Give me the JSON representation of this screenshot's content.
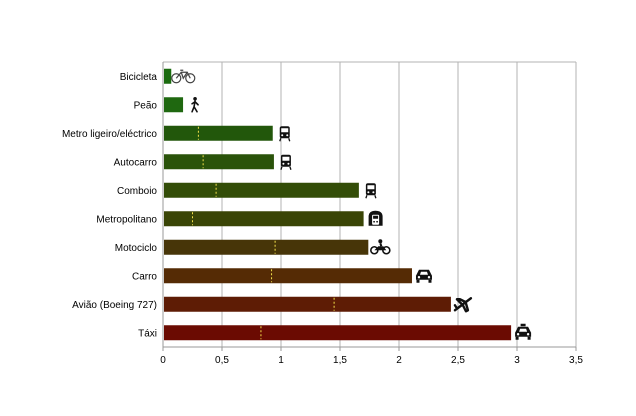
{
  "chart_data": {
    "type": "bar",
    "orientation": "horizontal",
    "title": "",
    "xlabel": "",
    "ylabel": "",
    "xlim": [
      0,
      3.5
    ],
    "x_ticks": [
      "0",
      "0,5",
      "1",
      "1,5",
      "2",
      "2,5",
      "3",
      "3,5"
    ],
    "x_tick_values": [
      0,
      0.5,
      1,
      1.5,
      2,
      2.5,
      3,
      3.5
    ],
    "grid": "vertical",
    "legend": "none",
    "categories": [
      "Bicicleta",
      "Peão",
      "Metro ligeiro/eléctrico",
      "Autocarro",
      "Comboio",
      "Metropolitano",
      "Motociclo",
      "Carro",
      "Avião (Boeing 727)",
      "Táxi"
    ],
    "values": [
      0.07,
      0.17,
      0.93,
      0.94,
      1.66,
      1.7,
      1.74,
      2.11,
      2.44,
      2.95
    ],
    "marker_values": [
      null,
      null,
      0.3,
      0.34,
      0.45,
      0.25,
      0.95,
      0.92,
      1.45,
      0.83
    ],
    "colors": [
      "#1a6b0f",
      "#1f6810",
      "#22570b",
      "#2a530a",
      "#334d08",
      "#3a4506",
      "#473508",
      "#552b05",
      "#5e1c05",
      "#6b0b02"
    ],
    "icons": [
      "bicycle-icon",
      "pedestrian-icon",
      "tram-icon",
      "bus-icon",
      "train-icon",
      "metro-icon",
      "motorcycle-icon",
      "car-icon",
      "airplane-icon",
      "taxi-icon"
    ]
  }
}
